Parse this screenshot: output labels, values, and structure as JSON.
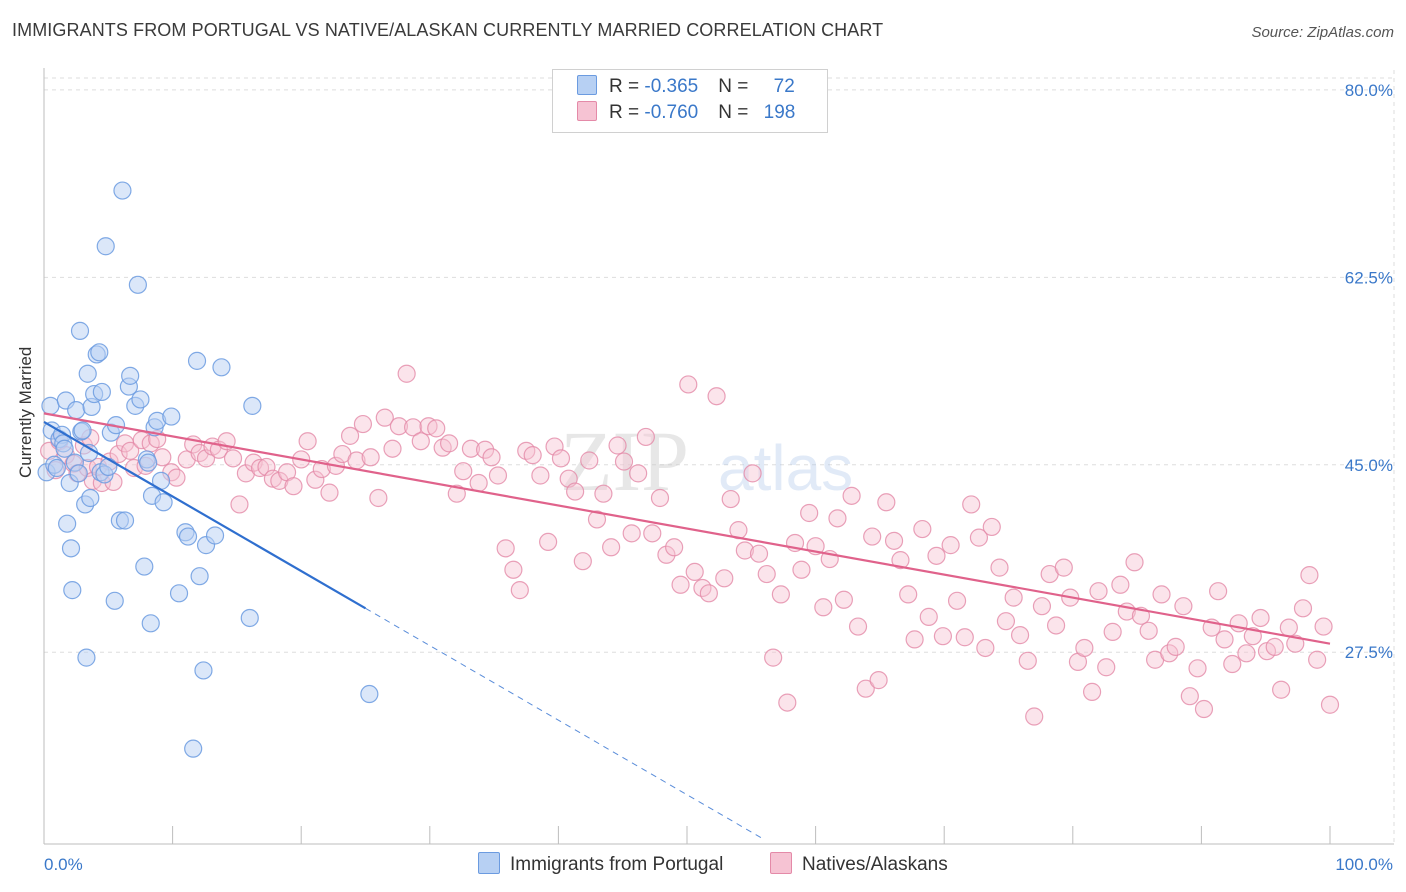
{
  "title": "IMMIGRANTS FROM PORTUGAL VS NATIVE/ALASKAN CURRENTLY MARRIED CORRELATION CHART",
  "source": "Source: ZipAtlas.com",
  "colors": {
    "blue": "#6b9be0",
    "blue_fill": "#b7d0f3",
    "pink": "#e48aa8",
    "pink_fill": "#f6c3d3",
    "blue_line": "#2f6fcf",
    "pink_line": "#e0628b",
    "axis_text": "#3a78c9"
  },
  "legend": {
    "rows": [
      {
        "r_label": "R = ",
        "r_value": "-0.365",
        "n_label": "N = ",
        "n_value": "72"
      },
      {
        "r_label": "R = ",
        "r_value": "-0.760",
        "n_label": "N = ",
        "n_value": "198"
      }
    ]
  },
  "bottom_legend": {
    "series1": "Immigrants from Portugal",
    "series2": "Natives/Alaskans"
  },
  "chart_data": {
    "type": "scatter",
    "title": "IMMIGRANTS FROM PORTUGAL VS NATIVE/ALASKAN CURRENTLY MARRIED CORRELATION CHART",
    "xlabel": "",
    "ylabel": "Currently Married",
    "xlim": [
      0,
      100
    ],
    "ylim": [
      9.6,
      82.6
    ],
    "x_tick_labels": [
      "0.0%",
      "100.0%"
    ],
    "y_ticks": [
      27.5,
      45.0,
      62.5,
      80.0
    ],
    "y_tick_labels": [
      "27.5%",
      "45.0%",
      "62.5%",
      "80.0%"
    ],
    "grid": true,
    "legend_position": "top-center",
    "series": [
      {
        "name": "Immigrants from Portugal",
        "r": -0.365,
        "n": 72,
        "trend": {
          "x0": 0,
          "y0": 49.0,
          "x1": 25,
          "y1": 31.6,
          "dash_to_x": 56
        },
        "points": [
          [
            0.2,
            44.3
          ],
          [
            0.5,
            50.5
          ],
          [
            0.6,
            48.2
          ],
          [
            0.8,
            45.0
          ],
          [
            1.0,
            44.7
          ],
          [
            1.2,
            47.4
          ],
          [
            1.4,
            47.8
          ],
          [
            1.5,
            47.0
          ],
          [
            1.6,
            46.5
          ],
          [
            1.7,
            51.0
          ],
          [
            1.8,
            39.5
          ],
          [
            2.0,
            43.3
          ],
          [
            2.1,
            37.2
          ],
          [
            2.2,
            33.3
          ],
          [
            2.4,
            45.2
          ],
          [
            2.5,
            50.1
          ],
          [
            2.7,
            44.2
          ],
          [
            2.8,
            57.5
          ],
          [
            2.9,
            48.1
          ],
          [
            3.0,
            48.2
          ],
          [
            3.2,
            41.3
          ],
          [
            3.3,
            27.0
          ],
          [
            3.4,
            53.5
          ],
          [
            3.5,
            46.1
          ],
          [
            3.6,
            41.9
          ],
          [
            3.7,
            50.4
          ],
          [
            3.9,
            51.6
          ],
          [
            4.1,
            55.3
          ],
          [
            4.3,
            55.5
          ],
          [
            4.4,
            44.3
          ],
          [
            4.5,
            51.8
          ],
          [
            4.7,
            44.1
          ],
          [
            4.8,
            65.4
          ],
          [
            5.0,
            44.8
          ],
          [
            5.2,
            48.0
          ],
          [
            5.5,
            32.3
          ],
          [
            5.6,
            48.7
          ],
          [
            5.9,
            39.8
          ],
          [
            6.1,
            70.6
          ],
          [
            6.3,
            39.8
          ],
          [
            6.6,
            52.3
          ],
          [
            6.7,
            53.3
          ],
          [
            7.1,
            50.5
          ],
          [
            7.3,
            61.8
          ],
          [
            7.5,
            51.1
          ],
          [
            7.8,
            35.5
          ],
          [
            8.0,
            45.5
          ],
          [
            8.1,
            45.2
          ],
          [
            8.3,
            30.2
          ],
          [
            8.4,
            42.1
          ],
          [
            8.6,
            48.5
          ],
          [
            8.8,
            49.1
          ],
          [
            9.1,
            43.5
          ],
          [
            9.3,
            41.5
          ],
          [
            9.9,
            49.5
          ],
          [
            10.5,
            33.0
          ],
          [
            11.0,
            38.7
          ],
          [
            11.2,
            38.3
          ],
          [
            11.6,
            18.5
          ],
          [
            11.9,
            54.7
          ],
          [
            12.1,
            34.6
          ],
          [
            12.4,
            25.8
          ],
          [
            12.6,
            37.5
          ],
          [
            13.3,
            38.4
          ],
          [
            13.8,
            54.1
          ],
          [
            16.2,
            50.5
          ],
          [
            16.0,
            30.7
          ],
          [
            25.3,
            23.6
          ]
        ]
      },
      {
        "name": "Natives/Alaskans",
        "r": -0.76,
        "n": 198,
        "trend": {
          "x0": 0,
          "y0": 49.8,
          "x1": 100,
          "y1": 28.3
        },
        "points": [
          [
            0.4,
            46.3
          ],
          [
            0.9,
            44.5
          ],
          [
            1.2,
            47.2
          ],
          [
            1.7,
            45.9
          ],
          [
            2.3,
            45.1
          ],
          [
            2.6,
            44.2
          ],
          [
            3.1,
            46.8
          ],
          [
            3.4,
            44.7
          ],
          [
            3.6,
            47.5
          ],
          [
            3.8,
            43.5
          ],
          [
            4.2,
            44.8
          ],
          [
            4.5,
            43.3
          ],
          [
            5.1,
            45.3
          ],
          [
            5.4,
            43.4
          ],
          [
            5.8,
            46.0
          ],
          [
            6.3,
            47.0
          ],
          [
            6.7,
            46.3
          ],
          [
            7.0,
            44.7
          ],
          [
            7.6,
            47.3
          ],
          [
            7.9,
            44.9
          ],
          [
            8.3,
            47.0
          ],
          [
            8.8,
            47.4
          ],
          [
            9.2,
            45.7
          ],
          [
            9.9,
            44.3
          ],
          [
            10.3,
            43.8
          ],
          [
            11.1,
            45.5
          ],
          [
            11.6,
            46.9
          ],
          [
            12.1,
            46.1
          ],
          [
            12.6,
            45.6
          ],
          [
            13.1,
            46.7
          ],
          [
            13.6,
            46.4
          ],
          [
            14.2,
            47.2
          ],
          [
            14.7,
            45.6
          ],
          [
            15.2,
            41.3
          ],
          [
            15.7,
            44.2
          ],
          [
            16.3,
            45.2
          ],
          [
            16.8,
            44.7
          ],
          [
            17.3,
            44.8
          ],
          [
            17.8,
            43.7
          ],
          [
            18.3,
            43.5
          ],
          [
            18.9,
            44.3
          ],
          [
            19.4,
            43.0
          ],
          [
            20.0,
            45.5
          ],
          [
            20.5,
            47.2
          ],
          [
            21.1,
            43.6
          ],
          [
            21.6,
            44.6
          ],
          [
            22.2,
            42.4
          ],
          [
            22.7,
            44.9
          ],
          [
            23.2,
            46.0
          ],
          [
            23.8,
            47.7
          ],
          [
            24.3,
            45.4
          ],
          [
            24.8,
            48.8
          ],
          [
            25.4,
            45.7
          ],
          [
            26.0,
            41.9
          ],
          [
            26.5,
            49.4
          ],
          [
            27.1,
            46.5
          ],
          [
            27.6,
            48.6
          ],
          [
            28.2,
            53.5
          ],
          [
            28.7,
            48.5
          ],
          [
            29.3,
            47.2
          ],
          [
            29.9,
            48.6
          ],
          [
            30.5,
            48.4
          ],
          [
            31.0,
            46.6
          ],
          [
            31.5,
            47.0
          ],
          [
            32.1,
            42.3
          ],
          [
            32.6,
            44.4
          ],
          [
            33.2,
            46.5
          ],
          [
            33.8,
            43.3
          ],
          [
            34.3,
            46.4
          ],
          [
            34.8,
            45.7
          ],
          [
            35.3,
            44.0
          ],
          [
            35.9,
            37.2
          ],
          [
            36.5,
            35.2
          ],
          [
            37.0,
            33.3
          ],
          [
            37.5,
            46.3
          ],
          [
            38.0,
            45.9
          ],
          [
            38.6,
            44.0
          ],
          [
            39.2,
            37.8
          ],
          [
            39.7,
            46.7
          ],
          [
            40.2,
            45.6
          ],
          [
            40.8,
            43.7
          ],
          [
            41.3,
            42.5
          ],
          [
            41.9,
            36.0
          ],
          [
            42.4,
            45.4
          ],
          [
            43.0,
            39.9
          ],
          [
            43.5,
            42.3
          ],
          [
            44.1,
            37.3
          ],
          [
            44.6,
            46.8
          ],
          [
            45.1,
            45.3
          ],
          [
            45.7,
            38.6
          ],
          [
            46.2,
            44.2
          ],
          [
            46.8,
            47.6
          ],
          [
            47.3,
            38.6
          ],
          [
            47.9,
            41.9
          ],
          [
            48.4,
            36.6
          ],
          [
            49.0,
            37.3
          ],
          [
            49.5,
            33.8
          ],
          [
            50.1,
            52.5
          ],
          [
            50.6,
            35.0
          ],
          [
            51.2,
            33.5
          ],
          [
            51.7,
            33.0
          ],
          [
            52.3,
            51.4
          ],
          [
            52.9,
            34.4
          ],
          [
            53.4,
            41.8
          ],
          [
            54.0,
            38.9
          ],
          [
            54.5,
            37.0
          ],
          [
            55.1,
            44.2
          ],
          [
            55.6,
            36.7
          ],
          [
            56.2,
            34.8
          ],
          [
            56.7,
            27.0
          ],
          [
            57.3,
            32.9
          ],
          [
            57.8,
            22.8
          ],
          [
            58.4,
            37.7
          ],
          [
            58.9,
            35.2
          ],
          [
            59.5,
            40.5
          ],
          [
            60.0,
            37.4
          ],
          [
            60.6,
            31.7
          ],
          [
            61.1,
            36.2
          ],
          [
            61.7,
            40.0
          ],
          [
            62.2,
            32.4
          ],
          [
            62.8,
            42.1
          ],
          [
            63.3,
            29.9
          ],
          [
            63.9,
            24.1
          ],
          [
            64.4,
            38.3
          ],
          [
            64.9,
            24.9
          ],
          [
            65.5,
            41.5
          ],
          [
            66.1,
            37.9
          ],
          [
            66.6,
            36.1
          ],
          [
            67.2,
            32.9
          ],
          [
            67.7,
            28.7
          ],
          [
            68.3,
            39.0
          ],
          [
            68.8,
            30.8
          ],
          [
            69.4,
            36.5
          ],
          [
            69.9,
            29.0
          ],
          [
            70.5,
            37.5
          ],
          [
            71.0,
            32.3
          ],
          [
            71.6,
            28.9
          ],
          [
            72.1,
            41.3
          ],
          [
            72.7,
            38.2
          ],
          [
            73.2,
            27.9
          ],
          [
            73.7,
            39.2
          ],
          [
            74.3,
            35.4
          ],
          [
            74.8,
            30.4
          ],
          [
            75.4,
            32.6
          ],
          [
            75.9,
            29.1
          ],
          [
            76.5,
            26.7
          ],
          [
            77.0,
            21.5
          ],
          [
            77.6,
            31.8
          ],
          [
            78.2,
            34.8
          ],
          [
            78.7,
            30.0
          ],
          [
            79.3,
            35.4
          ],
          [
            79.8,
            32.6
          ],
          [
            80.4,
            26.6
          ],
          [
            80.9,
            27.9
          ],
          [
            81.5,
            23.8
          ],
          [
            82.0,
            33.2
          ],
          [
            82.6,
            26.1
          ],
          [
            83.1,
            29.4
          ],
          [
            83.7,
            33.8
          ],
          [
            84.2,
            31.3
          ],
          [
            84.8,
            35.9
          ],
          [
            85.3,
            30.9
          ],
          [
            85.9,
            29.5
          ],
          [
            86.4,
            26.8
          ],
          [
            86.9,
            32.9
          ],
          [
            87.5,
            27.4
          ],
          [
            88.0,
            28.0
          ],
          [
            88.6,
            31.8
          ],
          [
            89.1,
            23.4
          ],
          [
            89.7,
            26.0
          ],
          [
            90.2,
            22.2
          ],
          [
            90.8,
            29.8
          ],
          [
            91.3,
            33.2
          ],
          [
            91.8,
            28.7
          ],
          [
            92.4,
            26.4
          ],
          [
            92.9,
            30.2
          ],
          [
            93.5,
            27.4
          ],
          [
            94.0,
            29.0
          ],
          [
            94.6,
            30.7
          ],
          [
            95.1,
            27.6
          ],
          [
            95.7,
            28.0
          ],
          [
            96.2,
            24.0
          ],
          [
            96.8,
            29.8
          ],
          [
            97.3,
            28.3
          ],
          [
            97.9,
            31.6
          ],
          [
            98.4,
            34.7
          ],
          [
            99.0,
            26.8
          ],
          [
            99.5,
            29.9
          ],
          [
            100.0,
            22.6
          ]
        ]
      }
    ]
  }
}
